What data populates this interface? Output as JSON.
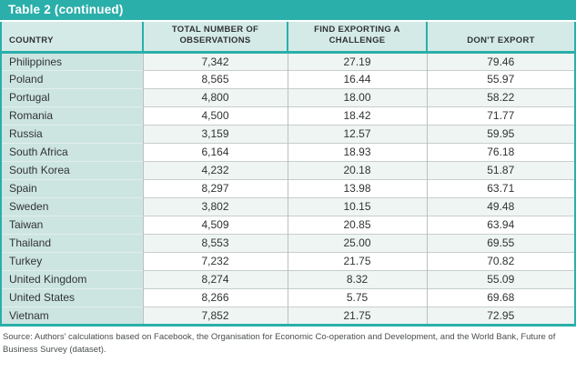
{
  "title": "Table 2 (continued)",
  "columns": [
    "COUNTRY",
    "TOTAL NUMBER OF OBSERVATIONS",
    "FIND EXPORTING A CHALLENGE",
    "DON'T EXPORT"
  ],
  "rows": [
    {
      "country": "Philippines",
      "observations": "7,342",
      "challenge": "27.19",
      "dont_export": "79.46"
    },
    {
      "country": "Poland",
      "observations": "8,565",
      "challenge": "16.44",
      "dont_export": "55.97"
    },
    {
      "country": "Portugal",
      "observations": "4,800",
      "challenge": "18.00",
      "dont_export": "58.22"
    },
    {
      "country": "Romania",
      "observations": "4,500",
      "challenge": "18.42",
      "dont_export": "71.77"
    },
    {
      "country": "Russia",
      "observations": "3,159",
      "challenge": "12.57",
      "dont_export": "59.95"
    },
    {
      "country": "South Africa",
      "observations": "6,164",
      "challenge": "18.93",
      "dont_export": "76.18"
    },
    {
      "country": "South Korea",
      "observations": "4,232",
      "challenge": "20.18",
      "dont_export": "51.87"
    },
    {
      "country": "Spain",
      "observations": "8,297",
      "challenge": "13.98",
      "dont_export": "63.71"
    },
    {
      "country": "Sweden",
      "observations": "3,802",
      "challenge": "10.15",
      "dont_export": "49.48"
    },
    {
      "country": "Taiwan",
      "observations": "4,509",
      "challenge": "20.85",
      "dont_export": "63.94"
    },
    {
      "country": "Thailand",
      "observations": "8,553",
      "challenge": "25.00",
      "dont_export": "69.55"
    },
    {
      "country": "Turkey",
      "observations": "7,232",
      "challenge": "21.75",
      "dont_export": "70.82"
    },
    {
      "country": "United Kingdom",
      "observations": "8,274",
      "challenge": "8.32",
      "dont_export": "55.09"
    },
    {
      "country": "United States",
      "observations": "8,266",
      "challenge": "5.75",
      "dont_export": "69.68"
    },
    {
      "country": "Vietnam",
      "observations": "7,852",
      "challenge": "21.75",
      "dont_export": "72.95"
    }
  ],
  "source": "Source: Authors' calculations based on Facebook, the Organisation for Economic Co-operation and Development, and the World Bank, Future of Business Survey (dataset).",
  "colors": {
    "accent": "#2BAFAA",
    "header_bg": "#D4EAE6",
    "country_bg": "#CDE5E1",
    "row_tint": "#EEF5F2"
  }
}
